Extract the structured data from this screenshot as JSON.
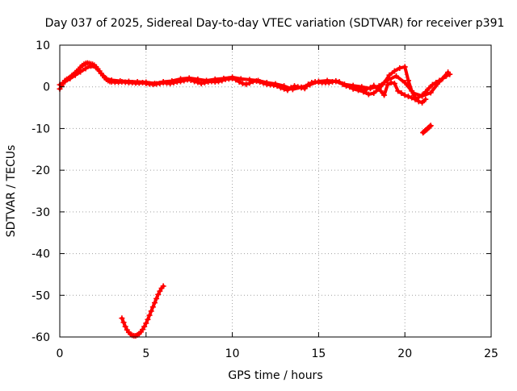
{
  "chart_data": {
    "type": "scatter",
    "title": "Day 037 of 2025, Sidereal Day-to-day VTEC variation (SDTVAR) for receiver p391",
    "xlabel": "GPS time / hours",
    "ylabel": "SDTVAR / TECUs",
    "xlim": [
      0,
      25
    ],
    "ylim": [
      -60,
      10
    ],
    "xticks": [
      0,
      5,
      10,
      15,
      20,
      25
    ],
    "yticks": [
      10,
      0,
      -10,
      -20,
      -30,
      -40,
      -50,
      -60
    ],
    "grid": true,
    "legend": "none",
    "series": [
      {
        "color": "#ff0000",
        "marker": "plus",
        "x": [
          0.0,
          0.1,
          0.2,
          0.3,
          0.4,
          0.5,
          0.6,
          0.7,
          0.8,
          0.9,
          1.0,
          1.1,
          1.2,
          1.3,
          1.4,
          1.5,
          1.6,
          1.7,
          1.8,
          1.9,
          2.0,
          2.1,
          2.2,
          2.3,
          2.4,
          2.5,
          2.6,
          2.7,
          2.8,
          2.9,
          3.0,
          3.2,
          3.4,
          3.6,
          3.8,
          4.0,
          4.2,
          4.4,
          4.6,
          4.8,
          5.0,
          5.2,
          5.4,
          5.6,
          5.8,
          6.0,
          6.2,
          6.4,
          6.6,
          6.8,
          7.0,
          7.2,
          7.4,
          7.6,
          7.8,
          8.0,
          8.2,
          8.4,
          8.6,
          8.8,
          9.0,
          9.2,
          9.4,
          9.6,
          9.8,
          10.0,
          10.2,
          10.4,
          10.6,
          10.8,
          11.0,
          11.2,
          11.4,
          11.6,
          11.8,
          12.0,
          12.2,
          12.4,
          12.6,
          12.8,
          13.0,
          13.2,
          13.4,
          13.6,
          13.8,
          14.0,
          14.2,
          14.4,
          14.6,
          14.8,
          15.0,
          15.2,
          15.4,
          15.6,
          15.8,
          16.0,
          16.2,
          16.4,
          16.6,
          16.8,
          17.0,
          17.2,
          17.4,
          17.6,
          17.8,
          18.0,
          18.2,
          18.4,
          18.6,
          18.8,
          19.0,
          19.2,
          19.4,
          19.6,
          19.8,
          20.0,
          20.2,
          20.4,
          20.6,
          20.8,
          21.0,
          21.2,
          21.4,
          21.6,
          21.8,
          22.0,
          22.2,
          22.4,
          22.6
        ],
        "y": [
          -0.5,
          0.3,
          1.0,
          1.5,
          1.8,
          2.0,
          2.3,
          2.7,
          3.0,
          3.4,
          3.8,
          4.2,
          4.7,
          5.1,
          5.4,
          5.6,
          5.7,
          5.6,
          5.5,
          5.4,
          5.2,
          4.8,
          4.3,
          3.8,
          3.2,
          2.7,
          2.2,
          1.8,
          1.5,
          1.3,
          1.2,
          1.1,
          1.1,
          1.2,
          1.1,
          1.0,
          1.0,
          0.9,
          0.9,
          1.0,
          0.8,
          0.7,
          0.6,
          0.7,
          0.8,
          1.0,
          0.9,
          0.8,
          1.0,
          1.2,
          1.3,
          1.5,
          1.7,
          1.6,
          1.3,
          1.1,
          0.8,
          1.0,
          1.2,
          1.3,
          1.2,
          1.3,
          1.5,
          1.8,
          1.9,
          2.0,
          1.7,
          1.2,
          0.8,
          0.6,
          0.9,
          1.3,
          1.4,
          1.2,
          0.9,
          0.6,
          0.5,
          0.4,
          0.2,
          -0.2,
          -0.5,
          -0.8,
          -0.2,
          0.2,
          0.0,
          -0.2,
          -0.4,
          0.6,
          1.0,
          1.2,
          1.1,
          1.0,
          1.0,
          1.0,
          1.2,
          1.4,
          1.2,
          0.6,
          0.2,
          0.0,
          0.1,
          -0.2,
          -0.6,
          -1.0,
          -0.5,
          -0.2,
          0.3,
          -0.4,
          -1.0,
          -2.0,
          0.5,
          1.0,
          0.8,
          -1.0,
          -1.5,
          -2.0,
          -2.3,
          -2.6,
          -3.0,
          -2.5,
          -2.0,
          -1.2,
          -0.3,
          0.5,
          1.0,
          1.5,
          2.0,
          2.6,
          3.0
        ]
      },
      {
        "color": "#ff0000",
        "marker": "plus",
        "x": [
          0.0,
          0.3,
          0.6,
          0.9,
          1.2,
          1.5,
          1.8,
          2.1,
          2.4,
          2.7,
          3.0,
          3.5,
          4.0,
          4.5,
          5.0,
          5.5,
          6.0,
          6.5,
          7.0,
          7.5,
          8.0,
          8.5,
          9.0,
          9.5,
          10.0,
          10.5,
          11.0,
          11.5,
          12.0,
          12.5,
          13.0,
          13.5,
          14.0,
          14.5,
          15.0,
          15.5,
          16.0,
          16.5,
          17.0,
          17.5,
          18.0,
          18.5,
          19.0,
          19.5,
          20.0,
          20.5,
          21.0,
          21.5,
          22.0,
          22.5
        ],
        "y": [
          0.5,
          1.2,
          2.0,
          2.8,
          3.6,
          4.4,
          5.0,
          4.6,
          3.2,
          2.0,
          1.6,
          1.4,
          1.3,
          1.2,
          1.1,
          0.8,
          1.2,
          1.4,
          1.9,
          2.1,
          1.8,
          1.5,
          1.8,
          2.0,
          2.3,
          1.9,
          1.7,
          1.5,
          1.0,
          0.7,
          0.2,
          -0.6,
          -0.1,
          0.5,
          1.3,
          1.5,
          1.3,
          0.6,
          0.3,
          0.0,
          -0.4,
          0.2,
          1.6,
          2.6,
          1.0,
          -1.5,
          -2.2,
          -1.4,
          1.2,
          3.5
        ]
      },
      {
        "color": "#ff0000",
        "marker": "plus",
        "x": [
          17.0,
          17.3,
          17.6,
          17.9,
          18.2,
          18.5,
          18.8,
          19.1,
          19.4,
          19.7,
          20.0,
          20.2,
          20.4,
          20.6,
          20.8,
          21.0,
          21.2
        ],
        "y": [
          -0.5,
          -0.8,
          -1.2,
          -1.8,
          -1.5,
          -0.5,
          1.0,
          2.8,
          3.8,
          4.5,
          4.8,
          1.5,
          -1.0,
          -2.5,
          -3.5,
          -3.8,
          -3.0
        ]
      },
      {
        "color": "#ff0000",
        "marker": "plus",
        "x": [
          21.05,
          21.1,
          21.15,
          21.2,
          21.25,
          21.3,
          21.35,
          21.4,
          21.45,
          21.5
        ],
        "y": [
          -11.0,
          -10.8,
          -10.6,
          -10.4,
          -10.3,
          -10.1,
          -9.9,
          -9.7,
          -9.5,
          -9.3
        ]
      },
      {
        "color": "#ff0000",
        "marker": "plus",
        "x": [
          3.6,
          3.7,
          3.8,
          3.9,
          4.0,
          4.1,
          4.2,
          4.3,
          4.4,
          4.5,
          4.6,
          4.7,
          4.8,
          4.9,
          5.0,
          5.1,
          5.2,
          5.3,
          5.4,
          5.5,
          5.6,
          5.7,
          5.8,
          5.9,
          6.0
        ],
        "y": [
          -55.5,
          -56.5,
          -57.5,
          -58.3,
          -58.9,
          -59.3,
          -59.6,
          -59.7,
          -59.7,
          -59.5,
          -59.2,
          -58.8,
          -58.2,
          -57.5,
          -56.7,
          -55.8,
          -54.8,
          -53.8,
          -52.8,
          -51.8,
          -50.8,
          -49.8,
          -49.0,
          -48.3,
          -47.8
        ]
      }
    ]
  }
}
